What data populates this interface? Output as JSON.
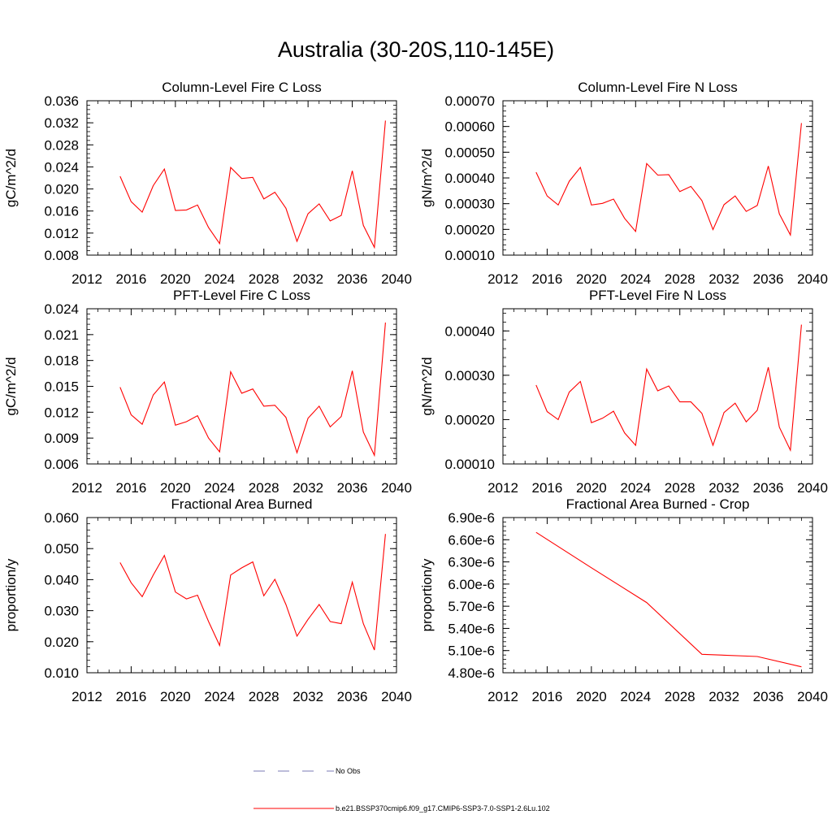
{
  "title": "Australia (30-20S,110-145E)",
  "colors": {
    "model": "#ff0000",
    "obs": "#7b7bb4",
    "axis": "#000000"
  },
  "legend": {
    "obs_label": "No Obs",
    "model_label": "b.e21.BSSP370cmip6.f09_g17.CMIP6-SSP3-7.0-SSP1-2.6Lu.102"
  },
  "chart_data": [
    {
      "type": "line",
      "title": "Column-Level Fire C Loss",
      "ylabel": "gC/m^2/d",
      "xlim": [
        2012,
        2040
      ],
      "ylim": [
        0.008,
        0.036
      ],
      "xticks": [
        "2012",
        "2016",
        "2020",
        "2024",
        "2028",
        "2032",
        "2036",
        "2040"
      ],
      "yticks": [
        "0.008",
        "0.012",
        "0.016",
        "0.020",
        "0.024",
        "0.028",
        "0.032",
        "0.036"
      ],
      "x": [
        2015,
        2016,
        2017,
        2018,
        2019,
        2020,
        2021,
        2022,
        2023,
        2024,
        2025,
        2026,
        2027,
        2028,
        2029,
        2030,
        2031,
        2032,
        2033,
        2034,
        2035,
        2036,
        2037,
        2038,
        2039
      ],
      "series": [
        {
          "values": [
            0.0223,
            0.0177,
            0.0158,
            0.0206,
            0.0236,
            0.0161,
            0.0162,
            0.0171,
            0.013,
            0.0101,
            0.0239,
            0.0219,
            0.0221,
            0.0182,
            0.0194,
            0.0165,
            0.0105,
            0.0155,
            0.0173,
            0.0142,
            0.0152,
            0.0233,
            0.0134,
            0.0094,
            0.0324
          ]
        }
      ]
    },
    {
      "type": "line",
      "title": "Column-Level Fire N Loss",
      "ylabel": "gN/m^2/d",
      "xlim": [
        2012,
        2040
      ],
      "ylim": [
        0.0001,
        0.0007
      ],
      "xticks": [
        "2012",
        "2016",
        "2020",
        "2024",
        "2028",
        "2032",
        "2036",
        "2040"
      ],
      "yticks": [
        "0.00010",
        "0.00020",
        "0.00030",
        "0.00040",
        "0.00050",
        "0.00060",
        "0.00070"
      ],
      "x": [
        2015,
        2016,
        2017,
        2018,
        2019,
        2020,
        2021,
        2022,
        2023,
        2024,
        2025,
        2026,
        2027,
        2028,
        2029,
        2030,
        2031,
        2032,
        2033,
        2034,
        2035,
        2036,
        2037,
        2038,
        2039
      ],
      "series": [
        {
          "values": [
            0.000422,
            0.00033,
            0.000295,
            0.000387,
            0.000441,
            0.000295,
            0.000301,
            0.000318,
            0.000243,
            0.000192,
            0.000456,
            0.000411,
            0.000413,
            0.000347,
            0.000367,
            0.000312,
            0.000199,
            0.000296,
            0.00033,
            0.00027,
            0.000293,
            0.000446,
            0.00026,
            0.000178,
            0.000613
          ]
        }
      ]
    },
    {
      "type": "line",
      "title": "PFT-Level Fire C Loss",
      "ylabel": "gC/m^2/d",
      "xlim": [
        2012,
        2040
      ],
      "ylim": [
        0.006,
        0.024
      ],
      "xticks": [
        "2012",
        "2016",
        "2020",
        "2024",
        "2028",
        "2032",
        "2036",
        "2040"
      ],
      "yticks": [
        "0.006",
        "0.009",
        "0.012",
        "0.015",
        "0.018",
        "0.021",
        "0.024"
      ],
      "x": [
        2015,
        2016,
        2017,
        2018,
        2019,
        2020,
        2021,
        2022,
        2023,
        2024,
        2025,
        2026,
        2027,
        2028,
        2029,
        2030,
        2031,
        2032,
        2033,
        2034,
        2035,
        2036,
        2037,
        2038,
        2039
      ],
      "series": [
        {
          "values": [
            0.0149,
            0.0117,
            0.0106,
            0.014,
            0.0155,
            0.0105,
            0.0109,
            0.0116,
            0.009,
            0.0074,
            0.0167,
            0.0142,
            0.0147,
            0.0127,
            0.0128,
            0.0114,
            0.0073,
            0.0113,
            0.0127,
            0.0103,
            0.0115,
            0.0168,
            0.0097,
            0.007,
            0.0224
          ]
        }
      ]
    },
    {
      "type": "line",
      "title": "PFT-Level Fire N Loss",
      "ylabel": "gN/m^2/d",
      "xlim": [
        2012,
        2040
      ],
      "ylim": [
        0.0001,
        0.00045
      ],
      "xticks": [
        "2012",
        "2016",
        "2020",
        "2024",
        "2028",
        "2032",
        "2036",
        "2040"
      ],
      "yticks": [
        "0.00010",
        "0.00020",
        "0.00030",
        "0.00040"
      ],
      "x": [
        2015,
        2016,
        2017,
        2018,
        2019,
        2020,
        2021,
        2022,
        2023,
        2024,
        2025,
        2026,
        2027,
        2028,
        2029,
        2030,
        2031,
        2032,
        2033,
        2034,
        2035,
        2036,
        2037,
        2038,
        2039
      ],
      "series": [
        {
          "values": [
            0.000278,
            0.000218,
            0.0002,
            0.000262,
            0.000286,
            0.000193,
            0.000203,
            0.000219,
            0.00017,
            0.000142,
            0.000314,
            0.000265,
            0.000276,
            0.00024,
            0.00024,
            0.000214,
            0.000142,
            0.000216,
            0.000237,
            0.000195,
            0.000221,
            0.000318,
            0.000183,
            0.000131,
            0.000414
          ]
        }
      ]
    },
    {
      "type": "line",
      "title": "Fractional Area Burned",
      "ylabel": "proportion/y",
      "xlim": [
        2012,
        2040
      ],
      "ylim": [
        0.01,
        0.06
      ],
      "xticks": [
        "2012",
        "2016",
        "2020",
        "2024",
        "2028",
        "2032",
        "2036",
        "2040"
      ],
      "yticks": [
        "0.010",
        "0.020",
        "0.030",
        "0.040",
        "0.050",
        "0.060"
      ],
      "x": [
        2015,
        2016,
        2017,
        2018,
        2019,
        2020,
        2021,
        2022,
        2023,
        2024,
        2025,
        2026,
        2027,
        2028,
        2029,
        2030,
        2031,
        2032,
        2033,
        2034,
        2035,
        2036,
        2037,
        2038,
        2039
      ],
      "series": [
        {
          "values": [
            0.0455,
            0.039,
            0.0345,
            0.0415,
            0.0478,
            0.036,
            0.0338,
            0.035,
            0.0265,
            0.0188,
            0.0415,
            0.0438,
            0.0457,
            0.0348,
            0.0401,
            0.032,
            0.0218,
            0.0272,
            0.032,
            0.0265,
            0.0258,
            0.0392,
            0.0258,
            0.0173,
            0.0547
          ]
        }
      ]
    },
    {
      "type": "line",
      "title": "Fractional Area Burned - Crop",
      "ylabel": "proportion/y",
      "xlim": [
        2012,
        2040
      ],
      "ylim": [
        4.8e-06,
        6.9e-06
      ],
      "xticks": [
        "2012",
        "2016",
        "2020",
        "2024",
        "2028",
        "2032",
        "2036",
        "2040"
      ],
      "yticks": [
        "4.80e-6",
        "5.10e-6",
        "5.40e-6",
        "5.70e-6",
        "6.00e-6",
        "6.30e-6",
        "6.60e-6",
        "6.90e-6"
      ],
      "x": [
        2015,
        2020,
        2025,
        2030,
        2035,
        2039
      ],
      "series": [
        {
          "values": [
            6.7e-06,
            6.22e-06,
            5.75e-06,
            5.05e-06,
            5.02e-06,
            4.88e-06
          ]
        }
      ]
    }
  ]
}
